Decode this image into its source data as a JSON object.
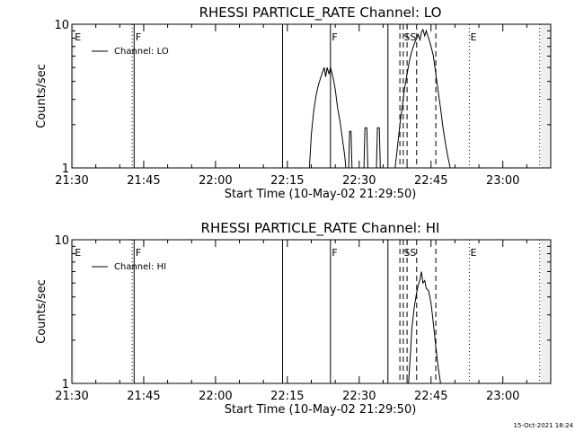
{
  "chart_data": [
    {
      "type": "line",
      "title": "RHESSI PARTICLE_RATE Channel: LO",
      "xlabel": "Start Time (10-May-02 21:29:50)",
      "ylabel": "Counts/sec",
      "xlim": [
        "21:30",
        "23:10"
      ],
      "ylim": [
        1,
        10
      ],
      "yscale": "log",
      "x_ticks": [
        "21:30",
        "21:45",
        "22:00",
        "22:15",
        "22:30",
        "22:45",
        "23:00"
      ],
      "y_ticks": [
        "1",
        "10"
      ],
      "legend": {
        "entries": [
          "Channel: LO"
        ],
        "placement": "top-left"
      },
      "shaded_regions": [
        [
          "21:30",
          "21:30.6"
        ],
        [
          "23:08",
          "23:10"
        ]
      ],
      "solid_vlines": [
        "21:43",
        "22:14",
        "22:24",
        "22:36"
      ],
      "dashed_vlines": [
        "22:38.5",
        "22:39.2",
        "22:40",
        "22:42",
        "22:46"
      ],
      "dotted_vlines": [
        "21:42.6",
        "22:53",
        "23:07.7"
      ],
      "flags": [
        {
          "x": "21:30.6",
          "label": "E"
        },
        {
          "x": "21:43.3",
          "label": "F"
        },
        {
          "x": "22:24.3",
          "label": "F"
        },
        {
          "x": "22:39.3",
          "label": "SS"
        },
        {
          "x": "22:53.2",
          "label": "E"
        }
      ],
      "series": [
        {
          "name": "Channel: LO",
          "segments": [
            {
              "x": [
                "22:19.6",
                "22:20",
                "22:20.5",
                "22:21",
                "22:21.5",
                "22:22",
                "22:22.3",
                "22:22.7",
                "22:23",
                "22:23.3",
                "22:23.7",
                "22:24",
                "22:24.3",
                "22:24.7",
                "22:25",
                "22:25.5",
                "22:26",
                "22:26.5",
                "22:27",
                "22:27.2"
              ],
              "y": [
                1.0,
                1.7,
                2.5,
                3.2,
                3.8,
                4.3,
                4.6,
                5.0,
                4.3,
                5.0,
                4.5,
                5.0,
                4.6,
                4.0,
                3.5,
                2.6,
                2.1,
                1.6,
                1.2,
                1.0
              ]
            },
            {
              "x": [
                "22:27.8",
                "22:28",
                "22:28.3",
                "22:28.5"
              ],
              "y": [
                1.0,
                1.8,
                1.8,
                1.0
              ]
            },
            {
              "x": [
                "22:31",
                "22:31.2",
                "22:31.6",
                "22:31.8"
              ],
              "y": [
                1.0,
                1.9,
                1.9,
                1.0
              ]
            },
            {
              "x": [
                "22:33.6",
                "22:33.8",
                "22:34.2",
                "22:34.4"
              ],
              "y": [
                1.0,
                1.9,
                1.9,
                1.0
              ]
            },
            {
              "x": [
                "22:37.5",
                "22:38",
                "22:38.5",
                "22:39",
                "22:39.5",
                "22:40",
                "22:40.5",
                "22:41",
                "22:41.5",
                "22:42",
                "22:42.3",
                "22:42.7",
                "22:43",
                "22:43.3",
                "22:43.7",
                "22:44",
                "22:44.5",
                "22:45",
                "22:45.5",
                "22:46",
                "22:46.5",
                "22:47",
                "22:47.5",
                "22:48",
                "22:48.5",
                "22:49"
              ],
              "y": [
                1.0,
                1.4,
                2.0,
                2.7,
                3.6,
                4.5,
                5.6,
                6.5,
                7.3,
                8.0,
                8.5,
                7.8,
                8.8,
                9.2,
                8.3,
                9.0,
                8.0,
                7.0,
                6.0,
                4.5,
                3.4,
                2.6,
                1.9,
                1.5,
                1.2,
                1.0
              ]
            }
          ]
        }
      ]
    },
    {
      "type": "line",
      "title": "RHESSI PARTICLE_RATE Channel: HI",
      "xlabel": "Start Time (10-May-02 21:29:50)",
      "ylabel": "Counts/sec",
      "xlim": [
        "21:30",
        "23:10"
      ],
      "ylim": [
        1,
        10
      ],
      "yscale": "log",
      "x_ticks": [
        "21:30",
        "21:45",
        "22:00",
        "22:15",
        "22:30",
        "22:45",
        "23:00"
      ],
      "y_ticks": [
        "1",
        "10"
      ],
      "legend": {
        "entries": [
          "Channel: HI"
        ],
        "placement": "top-left"
      },
      "shaded_regions": [
        [
          "21:30",
          "21:30.6"
        ],
        [
          "23:08",
          "23:10"
        ]
      ],
      "solid_vlines": [
        "21:43",
        "22:14",
        "22:24",
        "22:36"
      ],
      "dashed_vlines": [
        "22:38.5",
        "22:39.2",
        "22:40",
        "22:42",
        "22:46"
      ],
      "dotted_vlines": [
        "21:42.6",
        "22:53",
        "23:07.7"
      ],
      "flags": [
        {
          "x": "21:30.6",
          "label": "E"
        },
        {
          "x": "21:43.3",
          "label": "F"
        },
        {
          "x": "22:24.3",
          "label": "F"
        },
        {
          "x": "22:39.3",
          "label": "SS"
        },
        {
          "x": "22:53.2",
          "label": "E"
        }
      ],
      "series": [
        {
          "name": "Channel: HI",
          "segments": [
            {
              "x": [
                "22:40.3",
                "22:40.7",
                "22:41",
                "22:41.5",
                "22:42",
                "22:42.3",
                "22:42.7",
                "22:43",
                "22:43.3",
                "22:43.7",
                "22:44",
                "22:44.5",
                "22:45",
                "22:45.5",
                "22:46",
                "22:46.5",
                "22:47"
              ],
              "y": [
                1.0,
                1.6,
                2.4,
                3.4,
                4.3,
                4.8,
                5.3,
                6.0,
                5.0,
                5.2,
                4.6,
                4.4,
                3.6,
                2.6,
                1.8,
                1.3,
                1.0
              ]
            }
          ]
        }
      ]
    }
  ],
  "footer": {
    "timestamp": "15-Oct-2021 18:24"
  }
}
